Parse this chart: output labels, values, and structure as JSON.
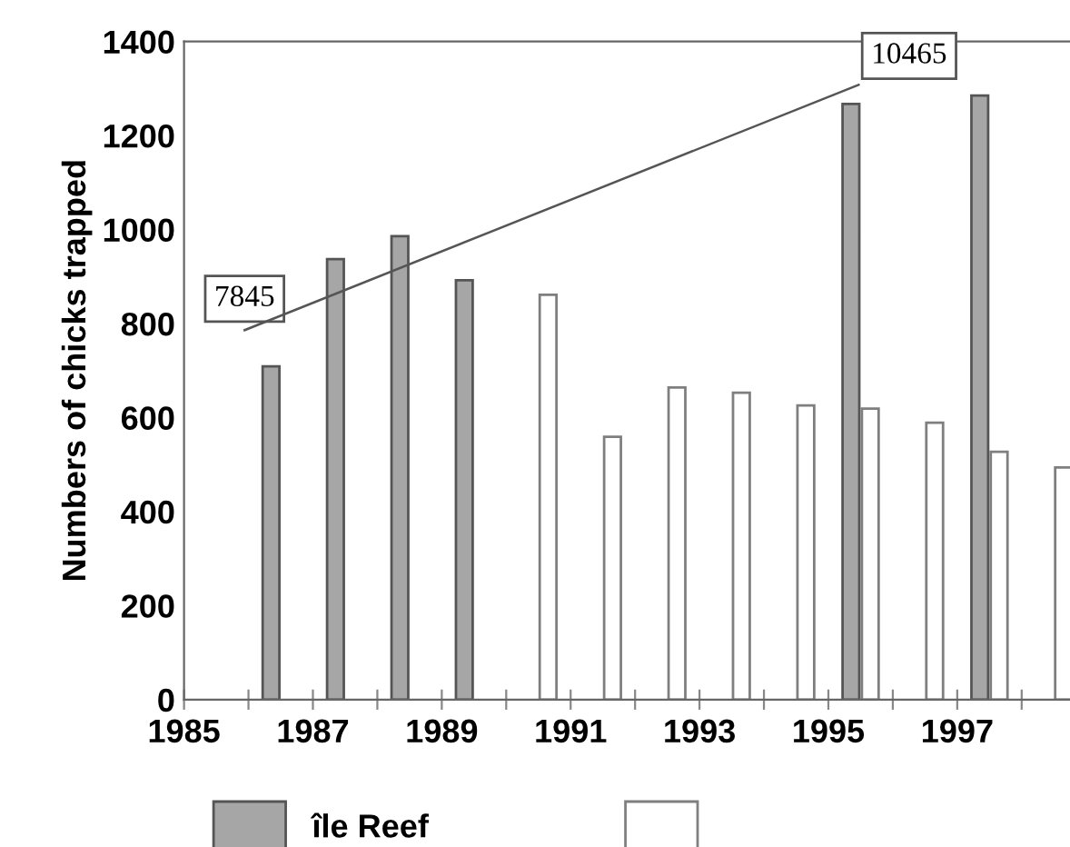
{
  "chart_data": {
    "type": "bar",
    "ylabel": "Numbers of chicks trapped",
    "series": [
      {
        "name": "île Reef",
        "color": "#a6a6a6",
        "x": [
          1986.35,
          1987.35,
          1988.35,
          1989.35,
          1995.35,
          1997.35
        ],
        "values": [
          709,
          937,
          986,
          892,
          1267,
          1285
        ]
      },
      {
        "color": "#ffffff",
        "x": [
          1990.65,
          1991.65,
          1992.65,
          1993.65,
          1994.65,
          1995.65,
          1996.65,
          1997.65,
          1998.65
        ],
        "values": [
          861,
          559,
          664,
          653,
          626,
          619,
          589,
          527,
          494
        ]
      },
      {
        "type": "line",
        "color": "#555555",
        "x": [
          1985.94,
          1995.47
        ],
        "values": [
          786,
          1308
        ]
      }
    ],
    "annotations": [
      {
        "text": "7845",
        "x": 1985.94,
        "y": 786
      },
      {
        "text": "10465",
        "x": 1995.47,
        "y": 1308
      }
    ],
    "xlim": [
      1985,
      1998.75
    ],
    "xticks": [
      1985,
      {
        "value": 1986,
        "label": null
      },
      1987,
      {
        "value": 1988,
        "label": null
      },
      1989,
      {
        "value": 1990,
        "label": null
      },
      1991,
      {
        "value": 1992,
        "label": null
      },
      1993,
      {
        "value": 1994,
        "label": null
      },
      1995,
      {
        "value": 1996,
        "label": null
      },
      1997,
      {
        "value": 1998,
        "label": null
      }
    ],
    "ylim": [
      0,
      1400
    ],
    "yticks": [
      0,
      200,
      400,
      600,
      800,
      1000,
      1200,
      1400
    ],
    "grid": false,
    "legend": "bottom"
  }
}
